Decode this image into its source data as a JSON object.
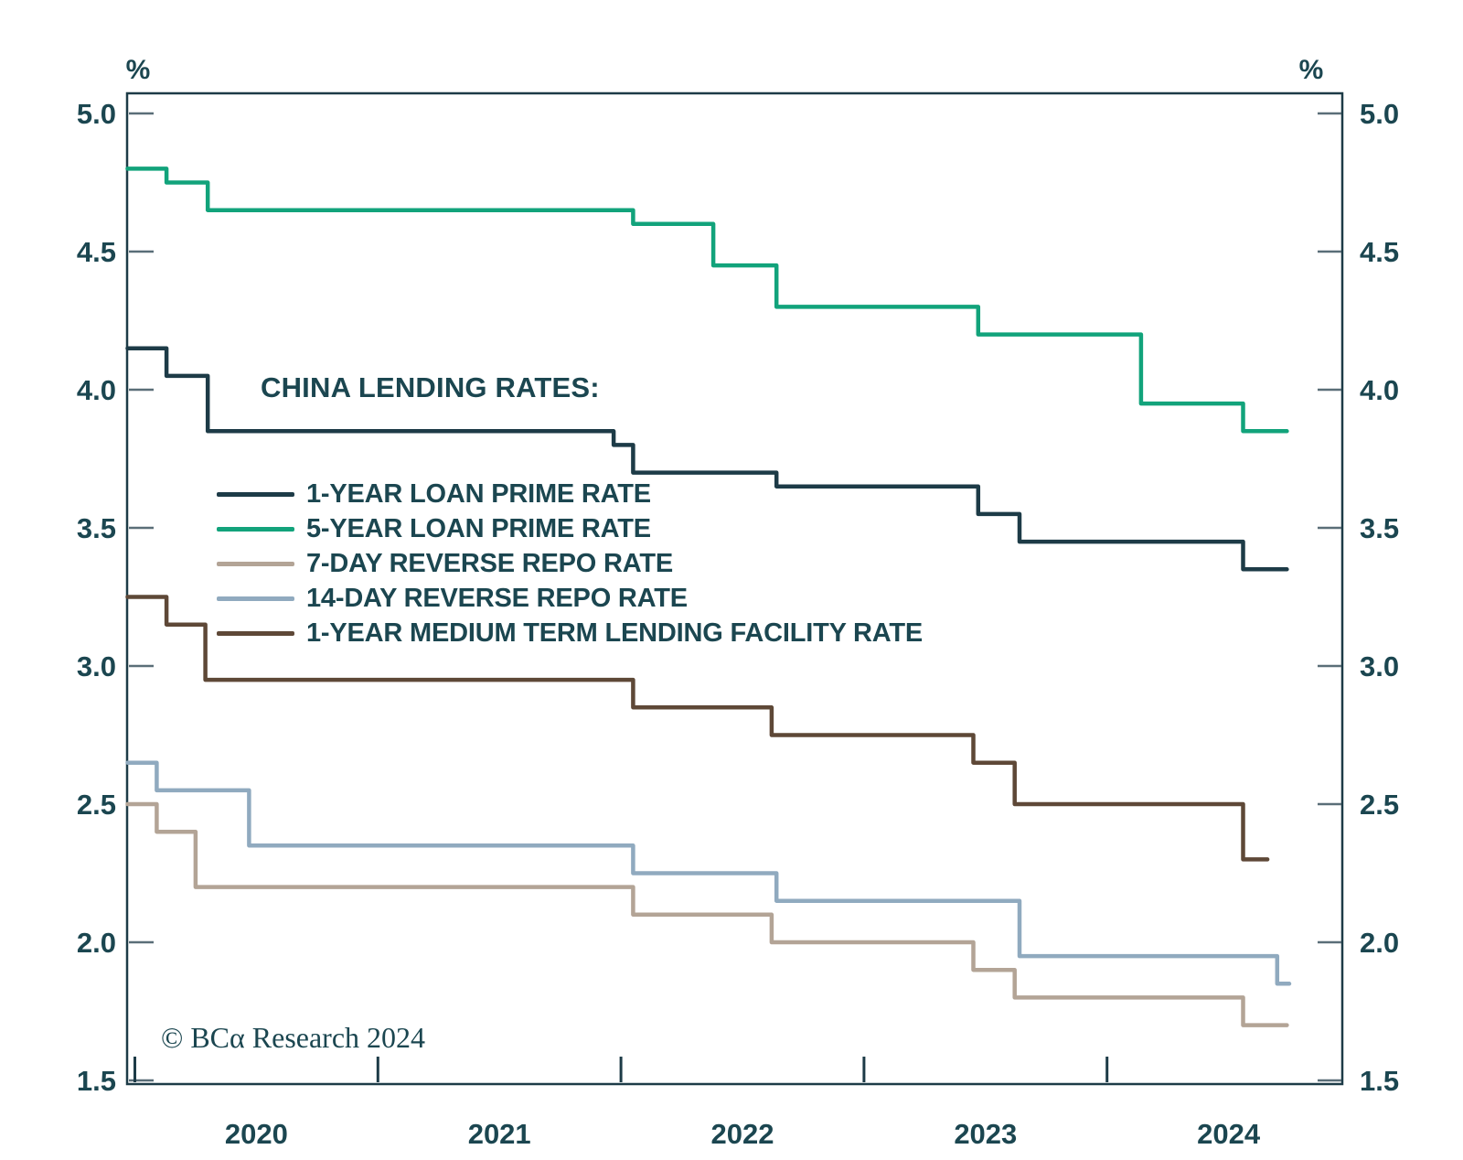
{
  "title": "CHINA LENDING RATES:",
  "copyright": "© BCα Research 2024",
  "axis": {
    "unit_label_left": "%",
    "unit_label_right": "%",
    "y_ticks": [
      "5.0",
      "4.5",
      "4.0",
      "3.5",
      "3.0",
      "2.5",
      "2.0",
      "1.5"
    ],
    "x_ticks": [
      "2020",
      "2021",
      "2022",
      "2023",
      "2024"
    ]
  },
  "colors": {
    "text": "#1b4650",
    "axis_box": "#1d3b47",
    "y_tick": "#5a6e78",
    "x_tick": "#1d3b47",
    "background": "#ffffff"
  },
  "chart_data": {
    "type": "line",
    "subtype": "step",
    "title": "CHINA LENDING RATES:",
    "xlabel": "",
    "ylabel": "%",
    "ylim": [
      1.5,
      5.0
    ],
    "y_tick_step": 0.5,
    "xlim": [
      2019.97,
      2024.97
    ],
    "x_tick_years": [
      2020,
      2021,
      2022,
      2023,
      2024
    ],
    "grid": false,
    "legend_position": "upper-left-inside",
    "series": [
      {
        "name": "1-YEAR LOAN PRIME RATE",
        "color": "#1d3b47",
        "end": 2024.74,
        "points": [
          [
            2019.97,
            4.15
          ],
          [
            2020.13,
            4.05
          ],
          [
            2020.3,
            3.85
          ],
          [
            2021.97,
            3.8
          ],
          [
            2022.05,
            3.7
          ],
          [
            2022.64,
            3.65
          ],
          [
            2023.47,
            3.55
          ],
          [
            2023.64,
            3.45
          ],
          [
            2024.56,
            3.35
          ]
        ]
      },
      {
        "name": "5-YEAR LOAN PRIME RATE",
        "color": "#12a37b",
        "end": 2024.74,
        "points": [
          [
            2019.97,
            4.8
          ],
          [
            2020.13,
            4.75
          ],
          [
            2020.3,
            4.65
          ],
          [
            2022.05,
            4.6
          ],
          [
            2022.38,
            4.45
          ],
          [
            2022.64,
            4.3
          ],
          [
            2023.47,
            4.2
          ],
          [
            2024.14,
            3.95
          ],
          [
            2024.56,
            3.85
          ]
        ]
      },
      {
        "name": "7-DAY REVERSE REPO RATE",
        "color": "#b3a496",
        "end": 2024.74,
        "points": [
          [
            2019.97,
            2.5
          ],
          [
            2020.09,
            2.4
          ],
          [
            2020.25,
            2.2
          ],
          [
            2022.05,
            2.1
          ],
          [
            2022.62,
            2.0
          ],
          [
            2023.45,
            1.9
          ],
          [
            2023.62,
            1.8
          ],
          [
            2024.56,
            1.7
          ]
        ]
      },
      {
        "name": "14-DAY REVERSE REPO RATE",
        "color": "#90aabf",
        "end": 2024.75,
        "points": [
          [
            2019.97,
            2.65
          ],
          [
            2020.09,
            2.55
          ],
          [
            2020.47,
            2.35
          ],
          [
            2022.05,
            2.25
          ],
          [
            2022.64,
            2.15
          ],
          [
            2023.64,
            1.95
          ],
          [
            2024.7,
            1.85
          ]
        ]
      },
      {
        "name": "1-YEAR MEDIUM TERM LENDING FACILITY RATE",
        "color": "#5e4837",
        "end": 2024.66,
        "points": [
          [
            2019.97,
            3.25
          ],
          [
            2020.13,
            3.15
          ],
          [
            2020.29,
            2.95
          ],
          [
            2022.05,
            2.85
          ],
          [
            2022.62,
            2.75
          ],
          [
            2023.45,
            2.65
          ],
          [
            2023.62,
            2.5
          ],
          [
            2024.56,
            2.3
          ]
        ]
      }
    ]
  }
}
